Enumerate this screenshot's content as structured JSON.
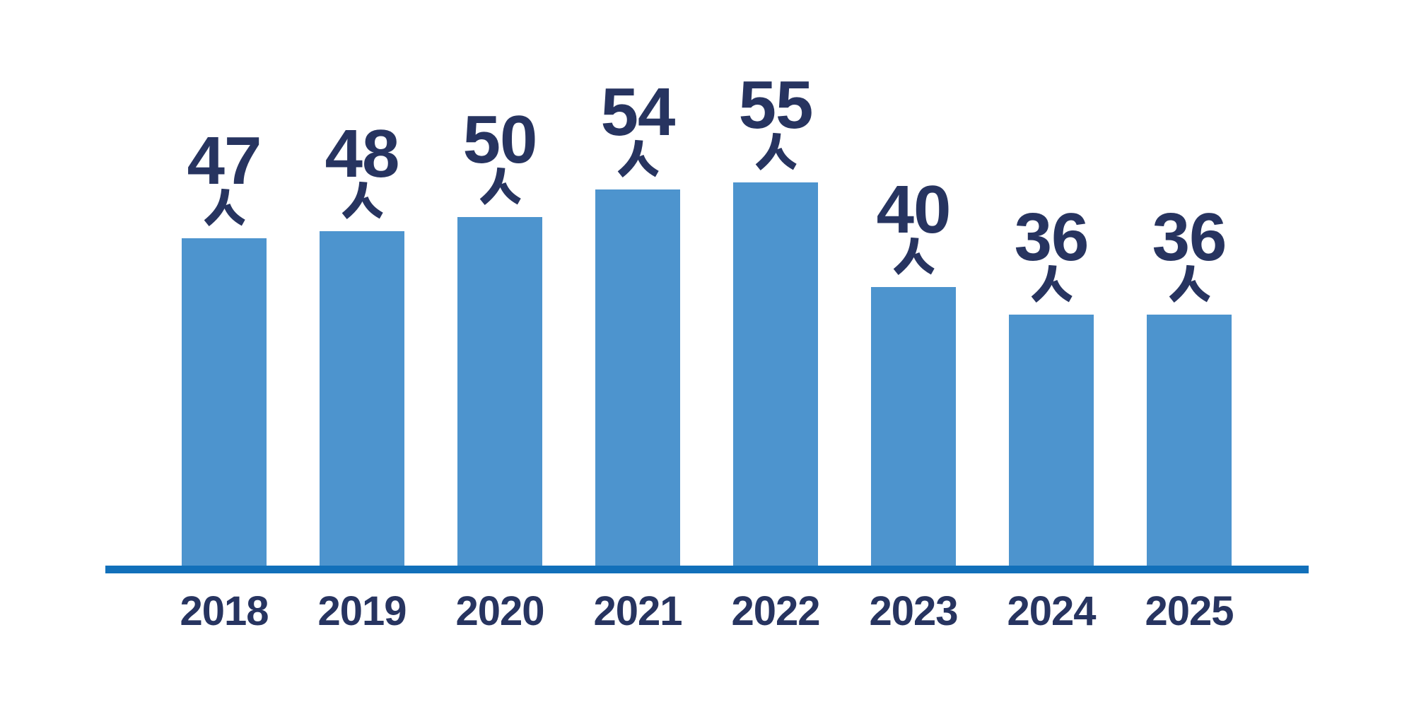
{
  "chart_data": {
    "type": "bar",
    "title": "",
    "categories": [
      "2018",
      "2019",
      "2020",
      "2021",
      "2022",
      "2023",
      "2024",
      "2025"
    ],
    "values": [
      47,
      48,
      50,
      54,
      55,
      40,
      36,
      36
    ],
    "unit": "人",
    "data_labels": [
      "47人",
      "48人",
      "50人",
      "54人",
      "55人",
      "40人",
      "36人",
      "36人"
    ],
    "xlabel": "",
    "ylabel": "",
    "ylim": [
      0,
      55
    ],
    "grid": false,
    "legend": false,
    "colors": {
      "bar": "#4D94CE",
      "axis_line": "#1270BA",
      "label_text": "#273460"
    }
  }
}
